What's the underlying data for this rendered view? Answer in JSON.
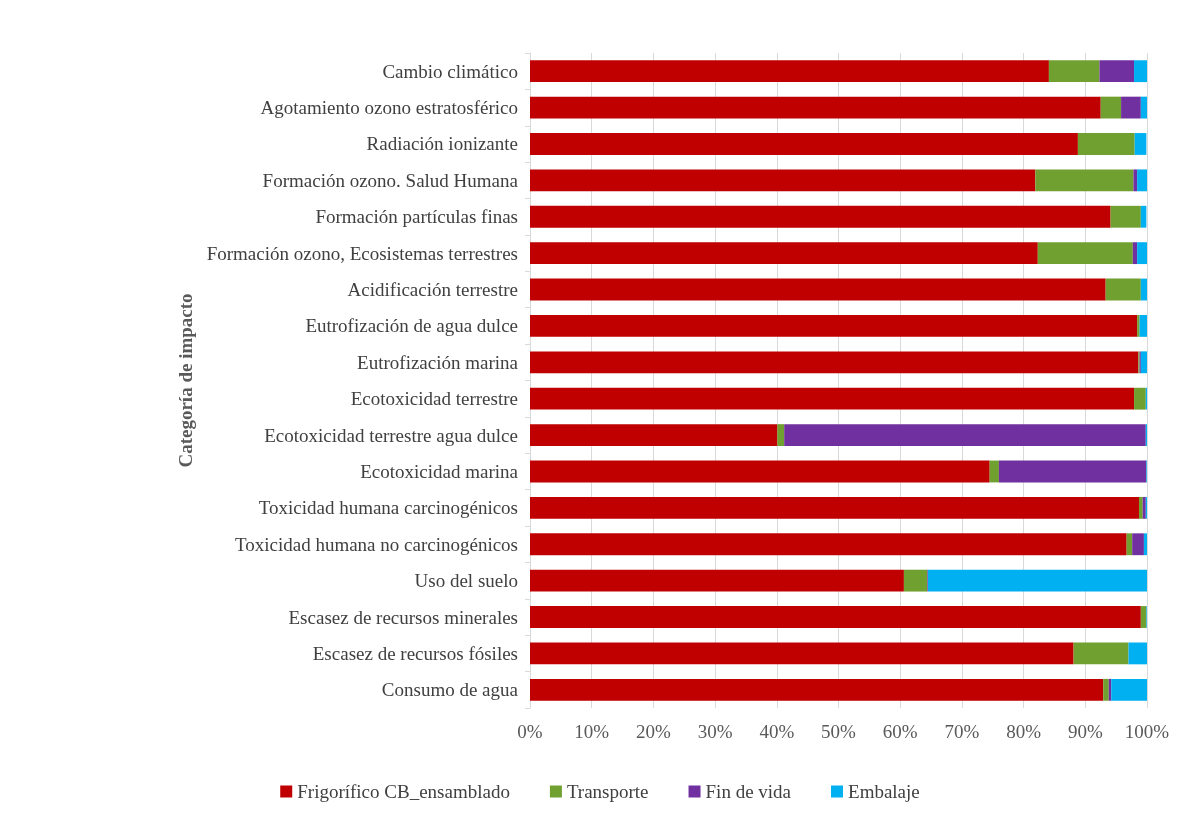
{
  "chart_data": {
    "type": "bar",
    "orientation": "horizontal",
    "stacked": true,
    "ylabel": "Categoría de impacto",
    "categories": [
      "Cambio climático",
      "Agotamiento ozono estratosférico",
      "Radiación ionizante",
      "Formación ozono. Salud Humana",
      "Formación partículas finas",
      "Formación ozono, Ecosistemas terrestres",
      "Acidificación terrestre",
      "Eutrofización de agua dulce",
      "Eutrofización marina",
      "Ecotoxicidad terrestre",
      "Ecotoxicidad terrestre agua dulce",
      "Ecotoxicidad marina",
      "Toxicidad humana carcinogénicos",
      "Toxicidad humana no carcinogénicos",
      "Uso del suelo",
      "Escasez de recursos minerales",
      "Escasez de recursos fósiles",
      "Consumo de agua"
    ],
    "series": [
      {
        "name": "Frigorífico CB_ensamblado",
        "color": "#c00000",
        "values": [
          84.1,
          92.5,
          88.8,
          81.9,
          94.1,
          82.3,
          93.3,
          98.4,
          98.6,
          97.9,
          40.1,
          74.5,
          98.7,
          96.7,
          60.6,
          99.0,
          88.1,
          92.9
        ]
      },
      {
        "name": "Transporte",
        "color": "#70a030",
        "values": [
          8.2,
          3.3,
          9.2,
          15.9,
          4.9,
          15.4,
          5.7,
          0.4,
          0.2,
          1.9,
          1.1,
          1.5,
          0.6,
          0.9,
          3.8,
          0.9,
          8.9,
          0.9
        ]
      },
      {
        "name": "Fin de vida",
        "color": "#7030a0",
        "values": [
          5.6,
          3.2,
          null,
          0.6,
          null,
          0.7,
          0,
          0,
          0.2,
          0,
          58.6,
          23.9,
          0.5,
          1.9,
          0.1,
          0,
          0,
          0.4
        ]
      },
      {
        "name": "Embalaje",
        "color": "#00b0f0",
        "values": [
          2.1,
          1.0,
          1.9,
          1.6,
          0.9,
          1.6,
          1.0,
          1.2,
          1.0,
          0.2,
          0.2,
          0.1,
          0.2,
          0.5,
          35.5,
          0.1,
          3.0,
          5.8
        ]
      }
    ],
    "xlim": [
      0,
      100
    ],
    "xticks": [
      {
        "value": 0,
        "label": "0%"
      },
      {
        "value": 10,
        "label": "10%"
      },
      {
        "value": 20,
        "label": "20%"
      },
      {
        "value": 30,
        "label": "30%"
      },
      {
        "value": 40,
        "label": "40%"
      },
      {
        "value": 50,
        "label": "50%"
      },
      {
        "value": 60,
        "label": "60%"
      },
      {
        "value": 70,
        "label": "70%"
      },
      {
        "value": 80,
        "label": "80%"
      },
      {
        "value": 90,
        "label": "90%"
      },
      {
        "value": 100,
        "label": "100%"
      }
    ],
    "grid": "x",
    "legend": "bottom"
  }
}
